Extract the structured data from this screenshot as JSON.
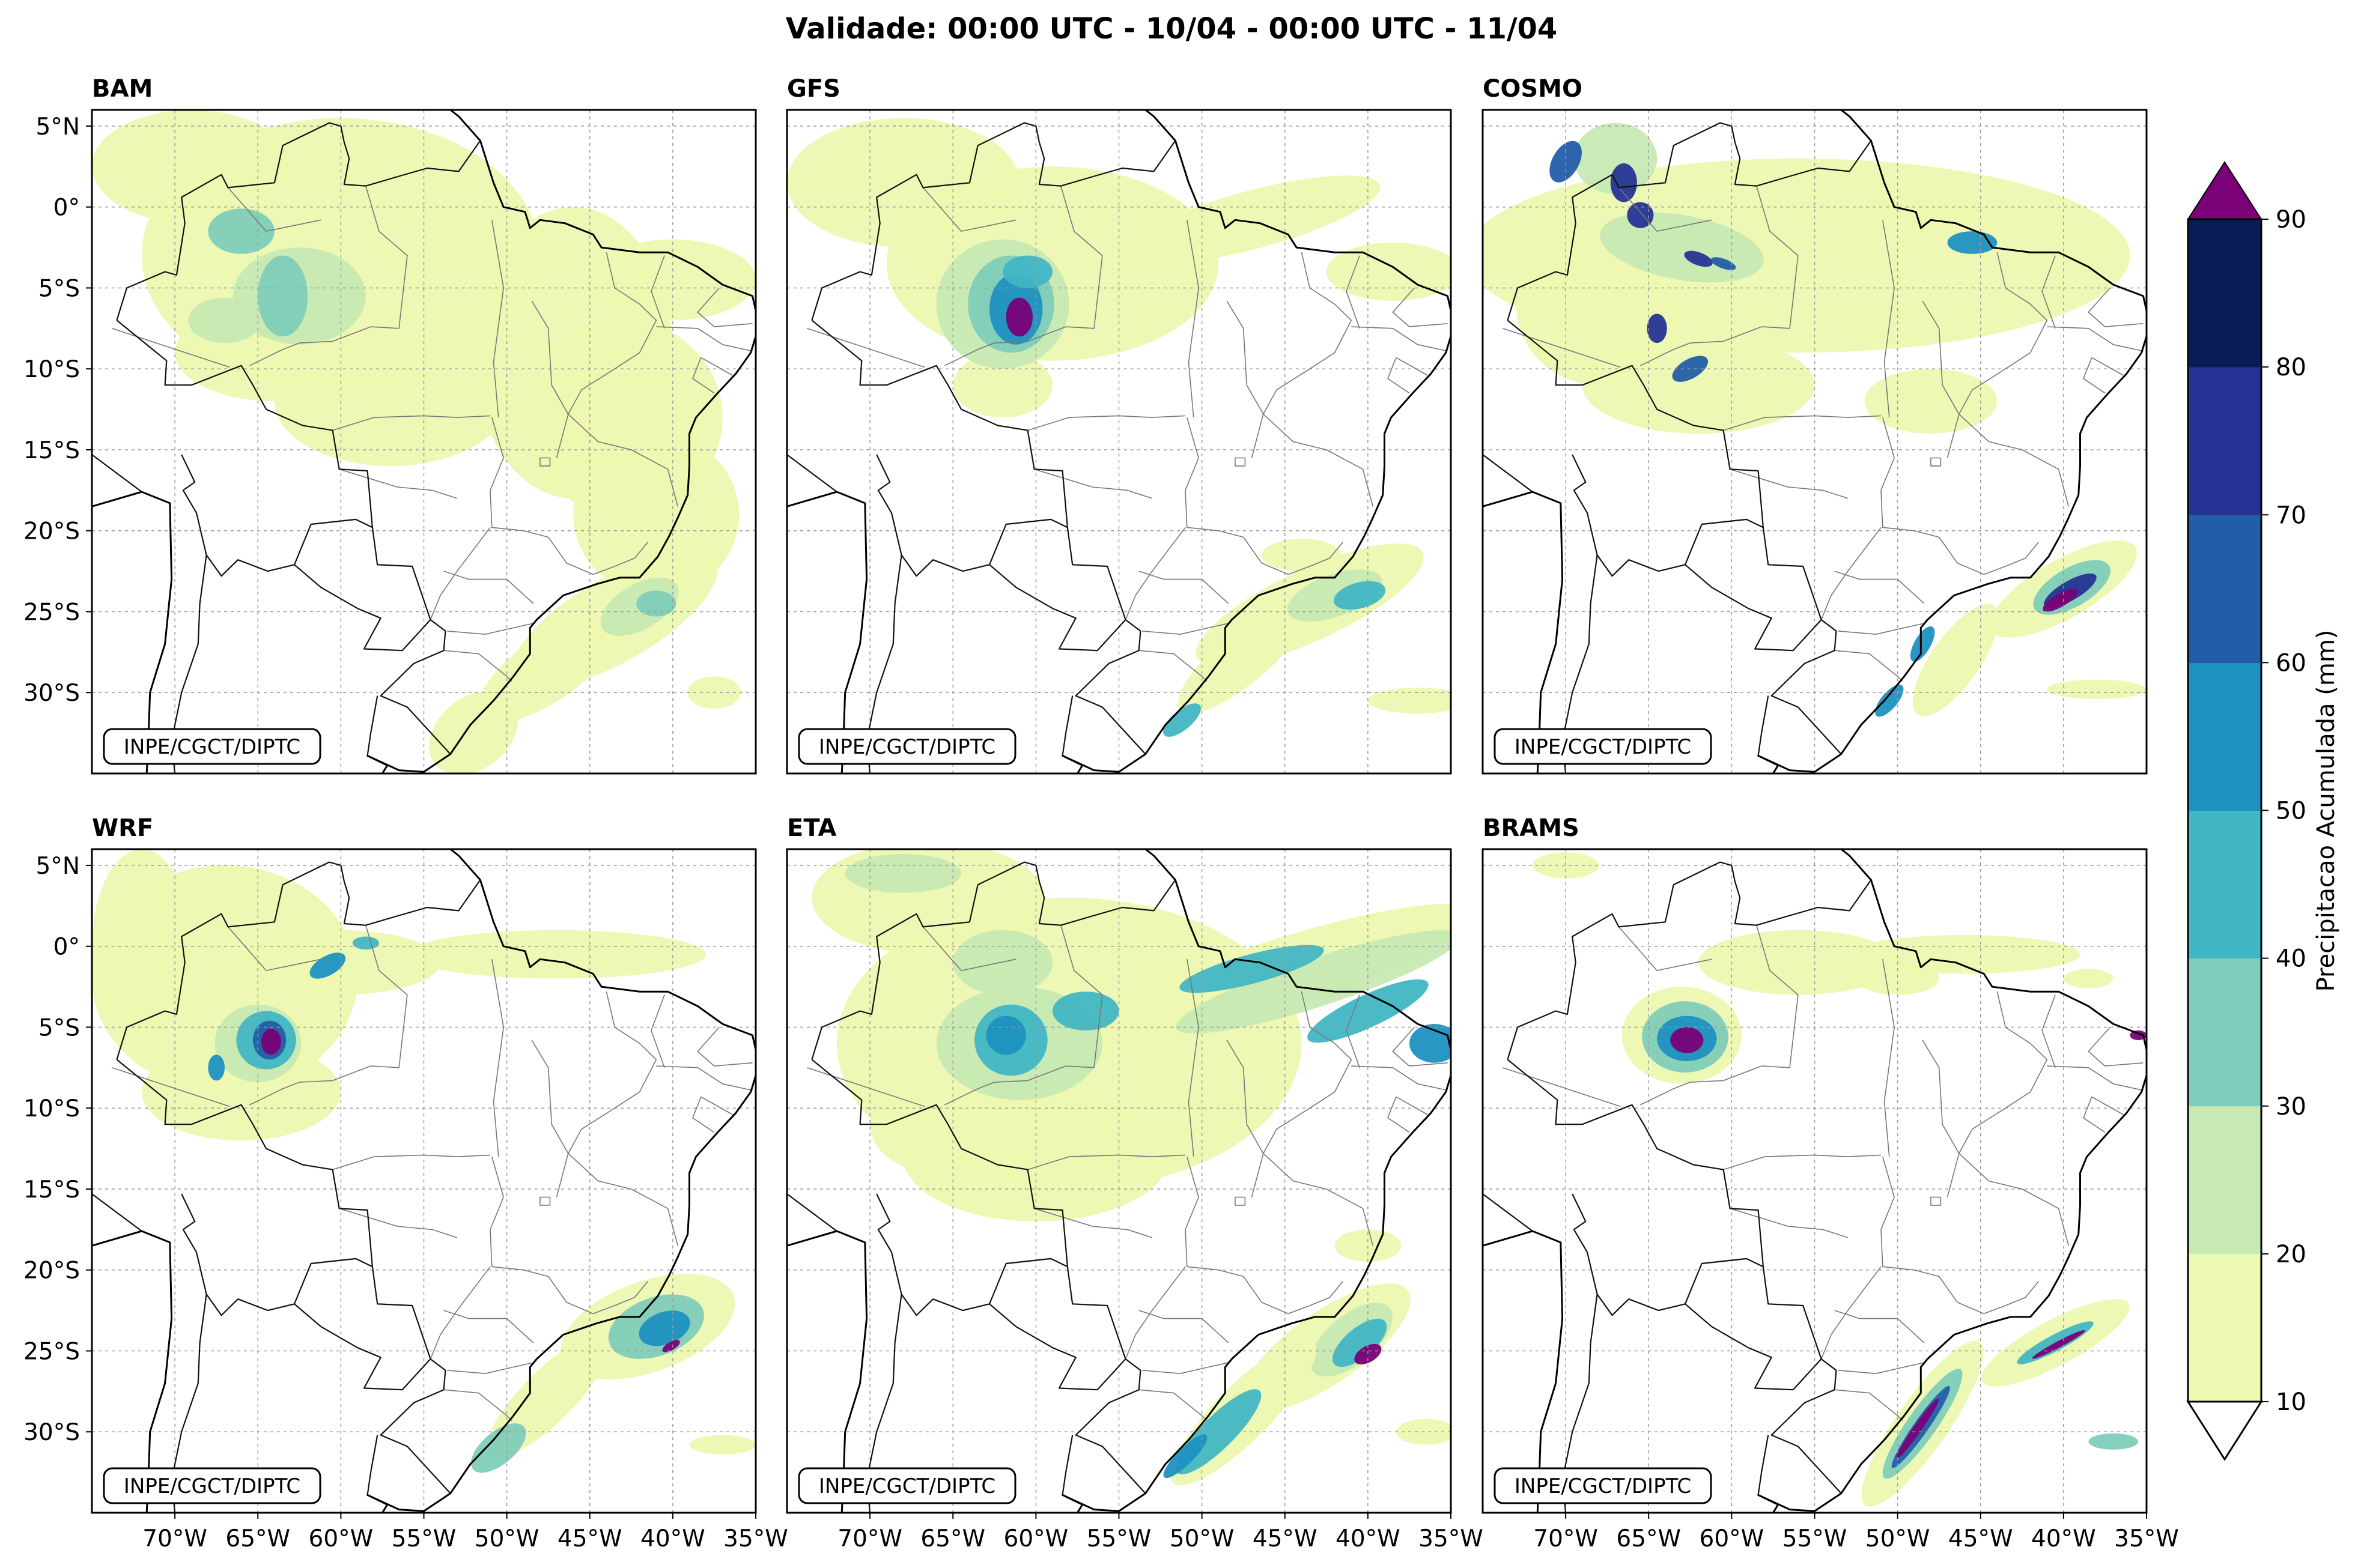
{
  "title": "Validade: 00:00 UTC - 10/04 - 00:00 UTC - 11/04",
  "credit": "INPE/CGCT/DIPTC",
  "map": {
    "lon_range": [
      -75,
      -35
    ],
    "lat_range": [
      -35,
      6
    ],
    "lon_ticks": [
      "70°W",
      "65°W",
      "60°W",
      "55°W",
      "50°W",
      "45°W",
      "40°W",
      "35°W"
    ],
    "lat_ticks": [
      "5°N",
      "0°",
      "5°S",
      "10°S",
      "15°S",
      "20°S",
      "25°S",
      "30°S"
    ]
  },
  "panels": [
    {
      "label": "BAM",
      "credit": "INPE/CGCT/DIPTC"
    },
    {
      "label": "GFS",
      "credit": "INPE/CGCT/DIPTC"
    },
    {
      "label": "COSMO",
      "credit": "INPE/CGCT/DIPTC"
    },
    {
      "label": "WRF",
      "credit": "INPE/CGCT/DIPTC"
    },
    {
      "label": "ETA",
      "credit": "INPE/CGCT/DIPTC"
    },
    {
      "label": "BRAMS",
      "credit": "INPE/CGCT/DIPTC"
    }
  ],
  "colorbar": {
    "label": "Precipitacao Acumulada (mm)",
    "ticks": [
      "10",
      "20",
      "30",
      "40",
      "50",
      "60",
      "70",
      "80",
      "90"
    ],
    "colors": [
      "#edf8b1",
      "#c7e9b4",
      "#7fcdbb",
      "#41b6c4",
      "#1d91c0",
      "#225ea8",
      "#253494",
      "#081d58"
    ],
    "over_color": "#7a0177",
    "under_color": "#ffffff"
  },
  "colors": {
    "l1": "#edf8b1",
    "l2": "#c7e9b4",
    "l3": "#7fcdbb",
    "l4": "#41b6c4",
    "l5": "#1d91c0",
    "l6": "#225ea8",
    "l7": "#253494",
    "l8": "#081d58",
    "over": "#7a0177"
  }
}
